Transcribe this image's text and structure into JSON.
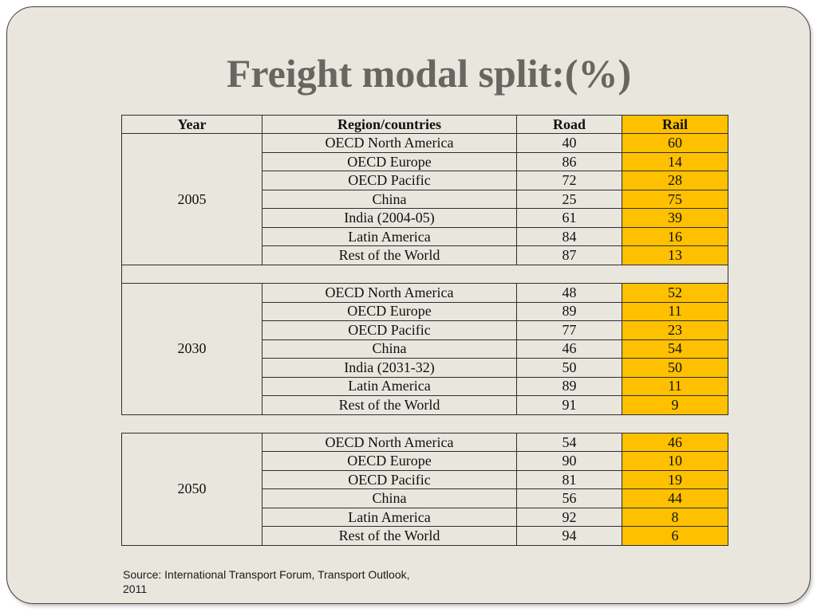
{
  "slide": {
    "title": "Freight modal split:(%)",
    "source": "Source: International Transport Forum, Transport Outlook, 2011"
  },
  "colors": {
    "rail_column_fill": "#ffc000",
    "title_text": "#686660",
    "slide_background": "#e9e6de"
  },
  "table": {
    "headers": {
      "year": "Year",
      "region": "Region/countries",
      "road": "Road",
      "rail": "Rail"
    },
    "groups": [
      {
        "year": "2005",
        "rows": [
          {
            "region": "OECD North America",
            "road": 40,
            "rail": 60
          },
          {
            "region": "OECD Europe",
            "road": 86,
            "rail": 14
          },
          {
            "region": "OECD Pacific",
            "road": 72,
            "rail": 28
          },
          {
            "region": "China",
            "road": 25,
            "rail": 75
          },
          {
            "region": "India (2004-05)",
            "road": 61,
            "rail": 39
          },
          {
            "region": "Latin America",
            "road": 84,
            "rail": 16
          },
          {
            "region": "Rest of the World",
            "road": 87,
            "rail": 13
          }
        ]
      },
      {
        "year": "2030",
        "rows": [
          {
            "region": "OECD North America",
            "road": 48,
            "rail": 52
          },
          {
            "region": "OECD Europe",
            "road": 89,
            "rail": 11
          },
          {
            "region": "OECD Pacific",
            "road": 77,
            "rail": 23
          },
          {
            "region": "China",
            "road": 46,
            "rail": 54
          },
          {
            "region": "India (2031-32)",
            "road": 50,
            "rail": 50
          },
          {
            "region": "Latin America",
            "road": 89,
            "rail": 11
          },
          {
            "region": "Rest of the World",
            "road": 91,
            "rail": 9
          }
        ]
      },
      {
        "year": "2050",
        "rows": [
          {
            "region": "OECD North America",
            "road": 54,
            "rail": 46
          },
          {
            "region": "OECD Europe",
            "road": 90,
            "rail": 10
          },
          {
            "region": "OECD Pacific",
            "road": 81,
            "rail": 19
          },
          {
            "region": "China",
            "road": 56,
            "rail": 44
          },
          {
            "region": "Latin America",
            "road": 92,
            "rail": 8
          },
          {
            "region": "Rest of the World",
            "road": 94,
            "rail": 6
          }
        ]
      }
    ]
  }
}
